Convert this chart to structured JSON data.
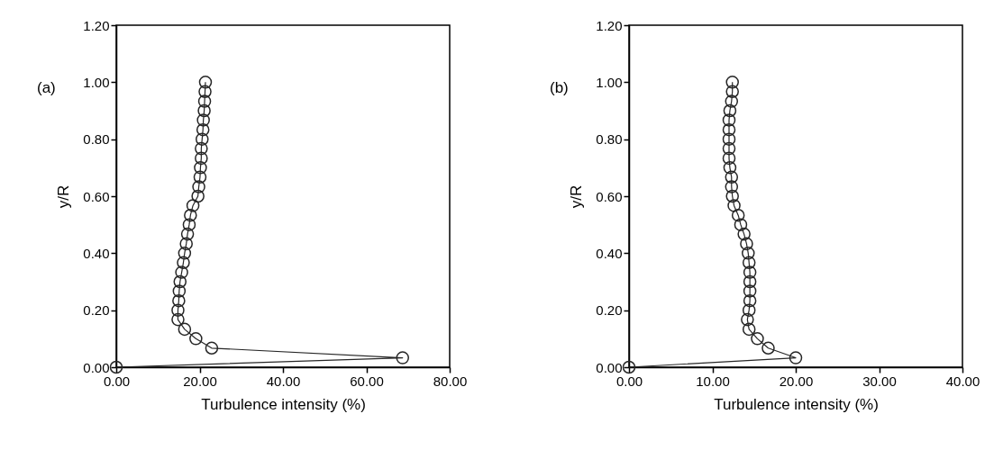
{
  "chart_data": [
    {
      "type": "line",
      "annotations": [
        "(a)"
      ],
      "xlabel": "Turbulence intensity (%)",
      "ylabel": "y/R",
      "marker": "circle",
      "grid": false,
      "xlim": [
        0,
        80
      ],
      "xticks": [
        {
          "value": 0,
          "label": "0.00"
        },
        {
          "value": 20,
          "label": "20.00"
        },
        {
          "value": 40,
          "label": "40.00"
        },
        {
          "value": 60,
          "label": "60.00"
        },
        {
          "value": 80,
          "label": "80.00"
        }
      ],
      "ylim": [
        0,
        1.2
      ],
      "yticks": [
        {
          "value": 0,
          "label": "0.00"
        },
        {
          "value": 0.2,
          "label": "0.20"
        },
        {
          "value": 0.4,
          "label": "0.40"
        },
        {
          "value": 0.6,
          "label": "0.60"
        },
        {
          "value": 0.8,
          "label": "0.80"
        },
        {
          "value": 1,
          "label": "1.00"
        },
        {
          "value": 1.2,
          "label": "1.20"
        }
      ],
      "series": [
        {
          "color": "#262626",
          "x": [
            0,
            68.7,
            22.9,
            19.1,
            16.4,
            14.8,
            14.8,
            15.0,
            15.1,
            15.3,
            15.7,
            16.1,
            16.4,
            16.8,
            17.1,
            17.5,
            17.8,
            18.4,
            19.6,
            19.8,
            20.1,
            20.2,
            20.4,
            20.4,
            20.6,
            20.8,
            20.9,
            21.1,
            21.2,
            21.3,
            21.4
          ],
          "values": [
            0,
            0.033,
            0.067,
            0.1,
            0.133,
            0.167,
            0.2,
            0.233,
            0.267,
            0.3,
            0.333,
            0.367,
            0.4,
            0.433,
            0.467,
            0.5,
            0.533,
            0.567,
            0.6,
            0.633,
            0.667,
            0.7,
            0.733,
            0.767,
            0.8,
            0.833,
            0.867,
            0.9,
            0.933,
            0.967,
            1.0
          ]
        }
      ]
    },
    {
      "type": "line",
      "annotations": [
        "(b)"
      ],
      "xlabel": "Turbulence intensity (%)",
      "ylabel": "y/R",
      "marker": "circle",
      "grid": false,
      "xlim": [
        0,
        40
      ],
      "xticks": [
        {
          "value": 0,
          "label": "0.00"
        },
        {
          "value": 10,
          "label": "10.00"
        },
        {
          "value": 20,
          "label": "20.00"
        },
        {
          "value": 30,
          "label": "30.00"
        },
        {
          "value": 40,
          "label": "40.00"
        }
      ],
      "ylim": [
        0,
        1.2
      ],
      "yticks": [
        {
          "value": 0,
          "label": "0.00"
        },
        {
          "value": 0.2,
          "label": "0.20"
        },
        {
          "value": 0.4,
          "label": "0.40"
        },
        {
          "value": 0.6,
          "label": "0.60"
        },
        {
          "value": 0.8,
          "label": "0.80"
        },
        {
          "value": 1,
          "label": "1.00"
        },
        {
          "value": 1.2,
          "label": "1.20"
        }
      ],
      "series": [
        {
          "color": "#262626",
          "x": [
            0,
            20.0,
            16.7,
            15.4,
            14.4,
            14.2,
            14.4,
            14.5,
            14.5,
            14.5,
            14.5,
            14.4,
            14.3,
            14.1,
            13.8,
            13.4,
            13.1,
            12.6,
            12.4,
            12.3,
            12.3,
            12.1,
            12.0,
            12.0,
            12.0,
            12.0,
            12.0,
            12.1,
            12.3,
            12.4,
            12.4
          ],
          "values": [
            0,
            0.033,
            0.067,
            0.1,
            0.133,
            0.167,
            0.2,
            0.233,
            0.267,
            0.3,
            0.333,
            0.367,
            0.4,
            0.433,
            0.467,
            0.5,
            0.533,
            0.567,
            0.6,
            0.633,
            0.667,
            0.7,
            0.733,
            0.767,
            0.8,
            0.833,
            0.867,
            0.9,
            0.933,
            0.967,
            1.0
          ]
        }
      ]
    }
  ]
}
